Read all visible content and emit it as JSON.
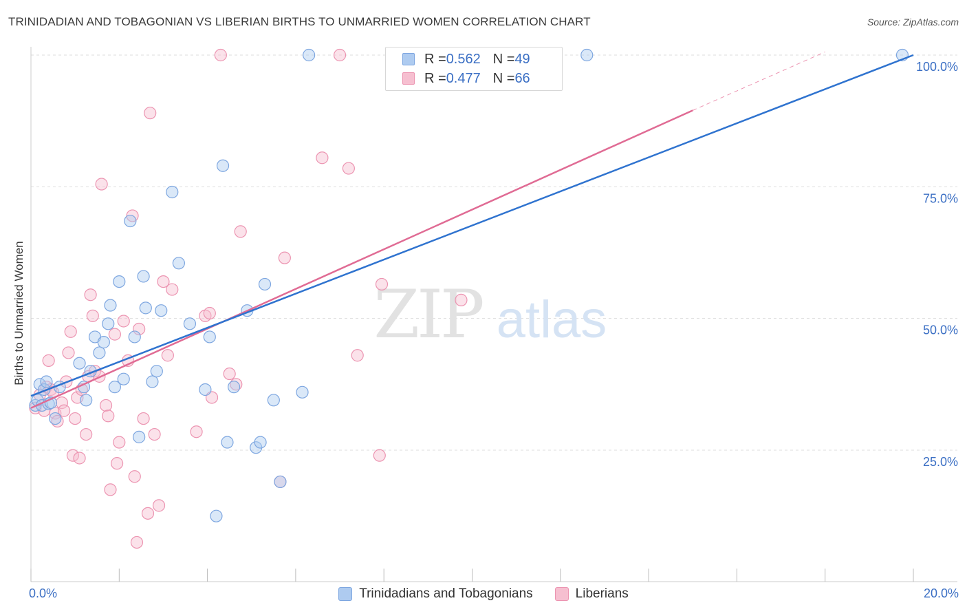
{
  "title": "TRINIDADIAN AND TOBAGONIAN VS LIBERIAN BIRTHS TO UNMARRIED WOMEN CORRELATION CHART",
  "source": "Source: ZipAtlas.com",
  "watermark": {
    "zip": "ZIP",
    "atlas": "atlas"
  },
  "legend": {
    "rows": [
      {
        "r_label": "R = ",
        "r_value": "0.562",
        "n_label": "N = ",
        "n_value": "49"
      },
      {
        "r_label": "R = ",
        "r_value": "0.477",
        "n_label": "N = ",
        "n_value": "66"
      }
    ]
  },
  "bottom_legend": [
    "Trinidadians and Tobagonians",
    "Liberians"
  ],
  "x_axis": {
    "min_label": "0.0%",
    "max_label": "20.0%"
  },
  "colors": {
    "series1_fill": "#aecbf0",
    "series1_stroke": "#7da6e0",
    "series1_line": "#2f73cf",
    "series2_fill": "#f6bfd0",
    "series2_stroke": "#ec94b1",
    "series2_line": "#e06b94",
    "grid": "#dddddd",
    "tick_label": "#3b6fc4"
  },
  "chart_data": {
    "type": "scatter",
    "ylabel": "Births to Unmarried Women",
    "xlim": [
      0,
      20
    ],
    "ylim": [
      0,
      100
    ],
    "y_ticks": [
      {
        "value": 25,
        "label": "25.0%"
      },
      {
        "value": 50,
        "label": "50.0%"
      },
      {
        "value": 75,
        "label": "75.0%"
      },
      {
        "value": 100,
        "label": "100.0%"
      }
    ],
    "grid": true,
    "legend_position": "top-center",
    "series": [
      {
        "name": "Trinidadians and Tobagonians",
        "r": 0.562,
        "n": 49,
        "trend": {
          "x": [
            0,
            20
          ],
          "y": [
            35.3,
            100
          ]
        },
        "points": [
          [
            0.1,
            33.5
          ],
          [
            0.15,
            34.5
          ],
          [
            0.2,
            37.5
          ],
          [
            0.25,
            33.5
          ],
          [
            0.3,
            36.5
          ],
          [
            0.35,
            38
          ],
          [
            0.4,
            33.8
          ],
          [
            0.45,
            34
          ],
          [
            0.55,
            31
          ],
          [
            0.65,
            37
          ],
          [
            1.1,
            41.5
          ],
          [
            1.2,
            37
          ],
          [
            1.25,
            34.5
          ],
          [
            1.35,
            40
          ],
          [
            1.45,
            46.5
          ],
          [
            1.55,
            43.5
          ],
          [
            1.65,
            45.5
          ],
          [
            1.75,
            49
          ],
          [
            1.8,
            52.5
          ],
          [
            1.9,
            37
          ],
          [
            2.0,
            57
          ],
          [
            2.1,
            38.5
          ],
          [
            2.25,
            68.5
          ],
          [
            2.35,
            46.5
          ],
          [
            2.45,
            27.5
          ],
          [
            2.55,
            58
          ],
          [
            2.6,
            52
          ],
          [
            2.75,
            38
          ],
          [
            2.85,
            40
          ],
          [
            2.95,
            51.5
          ],
          [
            3.2,
            74
          ],
          [
            3.35,
            60.5
          ],
          [
            3.6,
            49
          ],
          [
            3.95,
            36.5
          ],
          [
            4.05,
            46.5
          ],
          [
            4.2,
            12.5
          ],
          [
            4.35,
            79
          ],
          [
            4.45,
            26.5
          ],
          [
            4.6,
            37
          ],
          [
            4.9,
            51.5
          ],
          [
            5.1,
            25.5
          ],
          [
            5.2,
            26.5
          ],
          [
            5.3,
            56.5
          ],
          [
            5.5,
            34.5
          ],
          [
            5.65,
            19
          ],
          [
            6.15,
            36
          ],
          [
            6.3,
            100
          ],
          [
            12.6,
            100
          ],
          [
            19.75,
            100
          ]
        ]
      },
      {
        "name": "Liberians",
        "r": 0.477,
        "n": 66,
        "trend": {
          "x": [
            0,
            15
          ],
          "y": [
            33,
            89.5
          ]
        },
        "trend_dashed_extension": {
          "x": [
            15,
            20
          ],
          "y": [
            89.5,
            108
          ]
        },
        "points": [
          [
            0.1,
            33
          ],
          [
            0.2,
            35.5
          ],
          [
            0.3,
            32.5
          ],
          [
            0.35,
            37
          ],
          [
            0.4,
            42
          ],
          [
            0.45,
            36.5
          ],
          [
            0.5,
            36
          ],
          [
            0.55,
            32
          ],
          [
            0.6,
            30.5
          ],
          [
            0.7,
            34
          ],
          [
            0.75,
            32.5
          ],
          [
            0.8,
            38
          ],
          [
            0.85,
            43.5
          ],
          [
            0.9,
            47.5
          ],
          [
            0.95,
            24
          ],
          [
            1.0,
            31
          ],
          [
            1.05,
            35
          ],
          [
            1.1,
            23.5
          ],
          [
            1.15,
            36.5
          ],
          [
            1.25,
            28
          ],
          [
            1.3,
            39
          ],
          [
            1.35,
            54.5
          ],
          [
            1.4,
            50.5
          ],
          [
            1.45,
            40
          ],
          [
            1.55,
            39
          ],
          [
            1.6,
            75.5
          ],
          [
            1.7,
            33.5
          ],
          [
            1.75,
            31.5
          ],
          [
            1.8,
            17.5
          ],
          [
            1.9,
            47
          ],
          [
            1.95,
            22.5
          ],
          [
            2.0,
            26.5
          ],
          [
            2.1,
            49.5
          ],
          [
            2.2,
            42
          ],
          [
            2.3,
            69.5
          ],
          [
            2.35,
            20
          ],
          [
            2.4,
            7.5
          ],
          [
            2.45,
            48
          ],
          [
            2.55,
            31
          ],
          [
            2.65,
            13
          ],
          [
            2.7,
            89
          ],
          [
            2.8,
            28
          ],
          [
            2.9,
            14.5
          ],
          [
            3.0,
            57
          ],
          [
            3.1,
            43
          ],
          [
            3.2,
            55.5
          ],
          [
            3.75,
            28.5
          ],
          [
            3.95,
            50.5
          ],
          [
            4.05,
            51
          ],
          [
            4.1,
            35
          ],
          [
            4.3,
            100
          ],
          [
            4.5,
            39.5
          ],
          [
            4.65,
            37.5
          ],
          [
            4.75,
            66.5
          ],
          [
            5.65,
            19
          ],
          [
            5.75,
            61.5
          ],
          [
            6.6,
            80.5
          ],
          [
            7.0,
            100
          ],
          [
            7.2,
            78.5
          ],
          [
            7.4,
            43
          ],
          [
            7.9,
            24
          ],
          [
            7.95,
            56.5
          ],
          [
            9.75,
            53.5
          ],
          [
            11.2,
            100
          ],
          [
            11.35,
            100
          ],
          [
            11.55,
            100
          ]
        ]
      }
    ]
  }
}
